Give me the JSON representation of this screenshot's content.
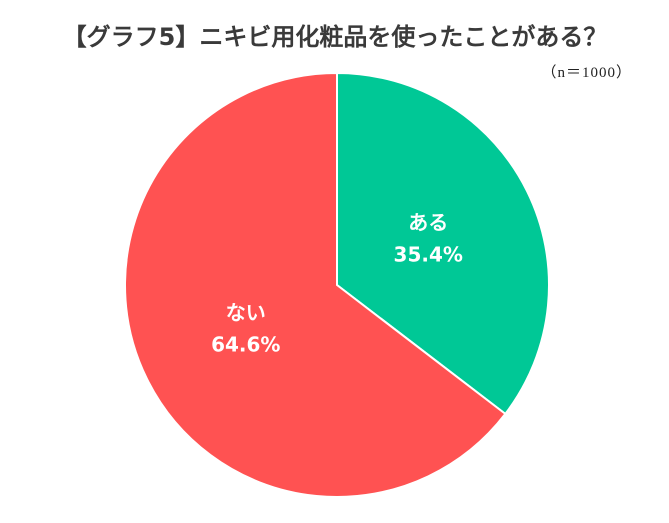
{
  "chart_data": {
    "type": "pie",
    "title": "【グラフ5】ニキビ用化粧品を使ったことがある？",
    "subtitle": "（n＝1000）",
    "categories": [
      "ある",
      "ない"
    ],
    "values": [
      35.4,
      64.6
    ],
    "value_labels": [
      "35.4%",
      "64.6%"
    ],
    "colors": [
      "#00c896",
      "#ff5252"
    ]
  }
}
